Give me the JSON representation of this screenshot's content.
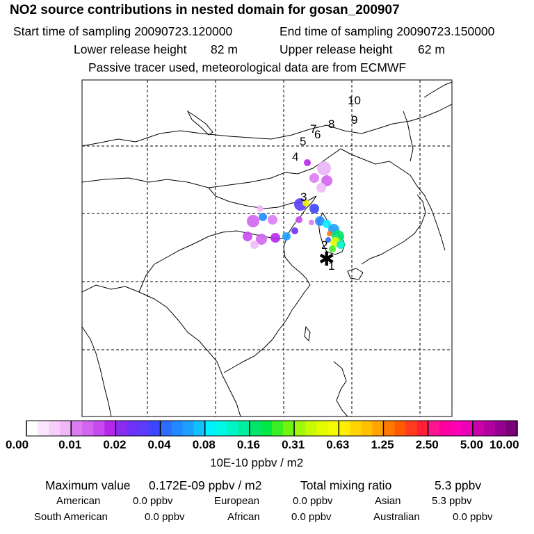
{
  "header": {
    "title": "NO2 source contributions in nested domain for gosan_200907",
    "start_label": "Start time of sampling 20090723.120000",
    "end_label": "End time of sampling 20090723.150000",
    "lower_label": "Lower release height",
    "lower_value": "82 m",
    "upper_label": "Upper release height",
    "upper_value": "62 m",
    "tracer_note": "Passive tracer used, meteorological data are from ECMWF"
  },
  "chart_data": {
    "type": "heatmap",
    "title": "NO2 source contributions in nested domain for gosan_200907",
    "colorbar": {
      "unit_label": "10E-10 ppbv / m2",
      "tick_labels": [
        "0.00",
        "0.01",
        "0.02",
        "0.04",
        "0.08",
        "0.16",
        "0.31",
        "0.63",
        "1.25",
        "2.50",
        "5.00",
        "10.00"
      ],
      "colors": [
        "#ffffff",
        "#fbe6fd",
        "#f6d0fb",
        "#f0b8f8",
        "#dc7cf3",
        "#d264f0",
        "#c84aee",
        "#b626ec",
        "#8a2bf0",
        "#6e31f5",
        "#5a3cfa",
        "#3c46ff",
        "#2c6cff",
        "#2288ff",
        "#1ca0ff",
        "#10c0ff",
        "#00f0ff",
        "#00f8e6",
        "#00f4c4",
        "#00eea0",
        "#00e46c",
        "#00e844",
        "#3af024",
        "#70f410",
        "#a0f80a",
        "#c8fa04",
        "#e2fc00",
        "#f4fa00",
        "#ffee00",
        "#ffd400",
        "#ffc000",
        "#ffa400",
        "#ff7800",
        "#ff5a00",
        "#ff3c1e",
        "#ff1e32",
        "#ff1490",
        "#ff00a0",
        "#ff00b4",
        "#ee00b8",
        "#cc00aa",
        "#b2009e",
        "#960090",
        "#780078"
      ]
    },
    "markers": [
      {
        "label": "1"
      },
      {
        "label": "2"
      },
      {
        "label": "3"
      },
      {
        "label": "4"
      },
      {
        "label": "5"
      },
      {
        "label": "6"
      },
      {
        "label": "7"
      },
      {
        "label": "8"
      },
      {
        "label": "9"
      },
      {
        "label": "10"
      }
    ],
    "receptor_symbol": "✱"
  },
  "stats": {
    "max_label": "Maximum value",
    "max_value": "0.172E-09 ppbv / m2",
    "total_label": "Total mixing ratio",
    "total_value": "5.3 ppbv",
    "regions": [
      {
        "name": "American",
        "value": "0.0 ppbv"
      },
      {
        "name": "European",
        "value": "0.0 ppbv"
      },
      {
        "name": "Asian",
        "value": "5.3 ppbv"
      },
      {
        "name": "South American",
        "value": "0.0 ppbv"
      },
      {
        "name": "African",
        "value": "0.0 ppbv"
      },
      {
        "name": "Australian",
        "value": "0.0 ppbv"
      }
    ]
  }
}
